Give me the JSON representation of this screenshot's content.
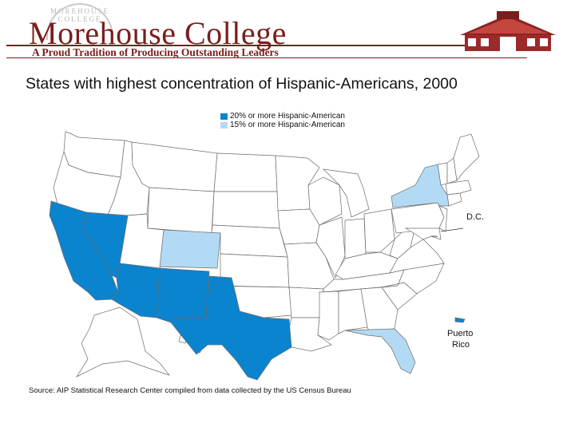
{
  "header": {
    "seal_text": "MOREHOUSE COLLEGE",
    "brand": "Morehouse College",
    "tagline": "A Proud Tradition of Producing Outstanding Leaders"
  },
  "title": "States with highest concentration of Hispanic-Americans, 2000",
  "legend": {
    "items": [
      {
        "label": "20% or more Hispanic-American",
        "color": "#0a84cf"
      },
      {
        "label": "15% or more Hispanic-American",
        "color": "#b3daf5"
      }
    ]
  },
  "map_data": {
    "states_20_percent_or_more": [
      "California",
      "Nevada",
      "Arizona",
      "New Mexico",
      "Texas"
    ],
    "states_15_percent_or_more": [
      "Colorado",
      "New York",
      "Florida"
    ],
    "extra_labels": {
      "dc": "D.C.",
      "puerto_rico_line1": "Puerto",
      "puerto_rico_line2": "Rico"
    }
  },
  "colors": {
    "brand": "#7a1d1d",
    "dark": "#0a84cf",
    "light": "#b3daf5",
    "border": "#6c6c6c"
  },
  "source": "Source:  AIP Statistical Research Center compiled from data collected by the US Census Bureau"
}
